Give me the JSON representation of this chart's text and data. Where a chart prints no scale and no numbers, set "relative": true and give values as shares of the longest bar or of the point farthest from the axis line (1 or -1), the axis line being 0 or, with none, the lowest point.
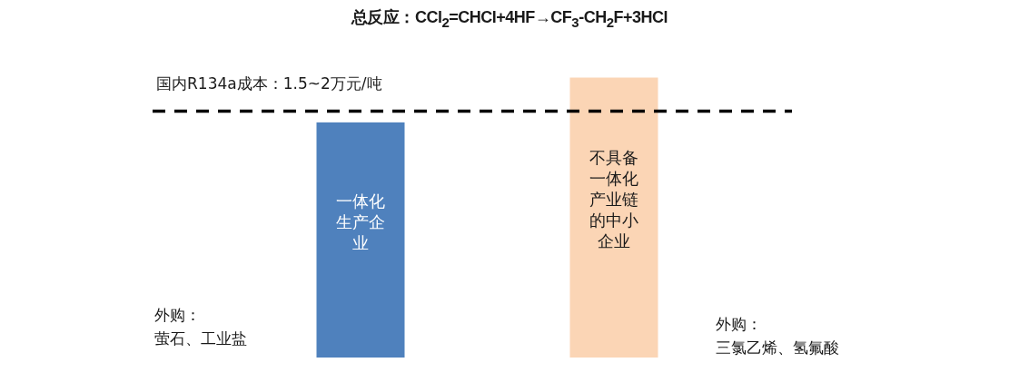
{
  "chart_data": {
    "type": "bar",
    "relative": true,
    "title": "总反应：CCl$_{2}$=CHCl+4HF→CF$_{3}$-CH$_{2}$F+3HCl",
    "categories": [
      "一体化生产企业",
      "不具备一体化产业链的中小企业"
    ],
    "values": [
      0.84,
      1
    ],
    "colors": [
      "#4f81bd",
      "#fbd5b5"
    ],
    "ref_lines": [
      {
        "axis": "y",
        "value": 0.88,
        "label": "国内R134a成本：1.5~2万元/吨",
        "line_style": "dashed",
        "color": "#000000"
      }
    ],
    "annotations": [
      "外购：",
      "萤石、工业盐",
      "外购：",
      "三氯乙烯、氢氟酸"
    ]
  }
}
